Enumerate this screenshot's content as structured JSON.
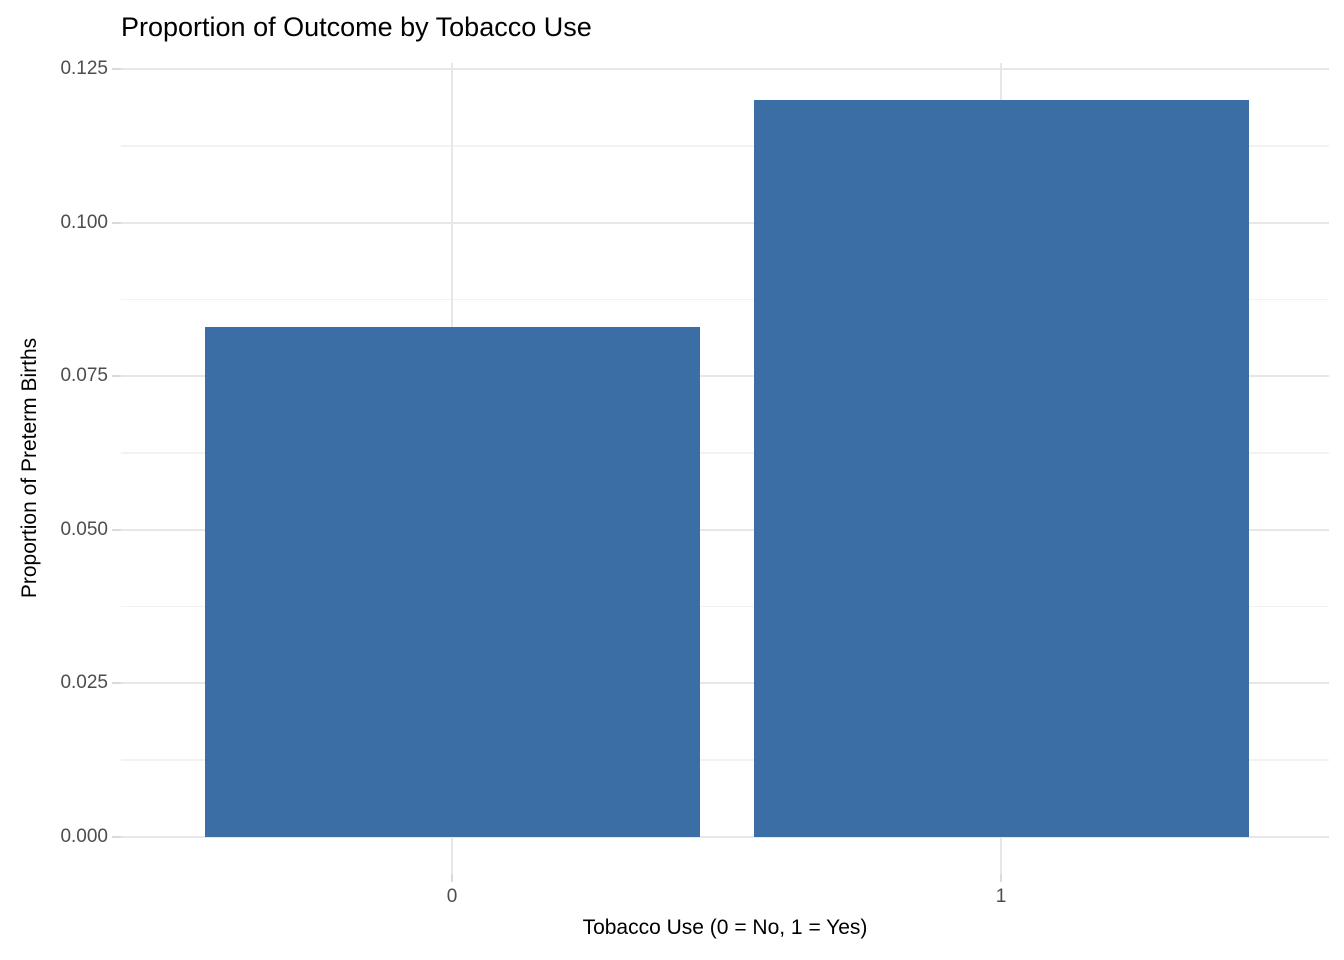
{
  "chart_data": {
    "type": "bar",
    "title": "Proportion of Outcome by Tobacco Use",
    "xlabel": "Tobacco Use (0 = No, 1 = Yes)",
    "ylabel": "Proportion of Preterm Births",
    "categories": [
      "0",
      "1"
    ],
    "values": [
      0.083,
      0.12
    ],
    "ylim": [
      0,
      0.125
    ],
    "y_major_values": [
      0,
      0.025,
      0.05,
      0.075,
      0.1,
      0.125
    ],
    "y_major_labels": [
      "0.000",
      "0.025",
      "0.050",
      "0.075",
      "0.100",
      "0.125"
    ],
    "y_minor_values": [
      0.0125,
      0.0375,
      0.0625,
      0.0875,
      0.1125
    ],
    "legend_position": "none",
    "grid": "horizontal major+minor, vertical at category centers",
    "colors": {
      "bar_fill": "#3A6EA5",
      "grid_major": "#E7E7E7",
      "grid_minor": "#F2F2F2",
      "tick_mark": "#DADADA",
      "tick_label": "#4D4D4D",
      "title_text": "#000000",
      "background": "#FFFFFF"
    }
  }
}
